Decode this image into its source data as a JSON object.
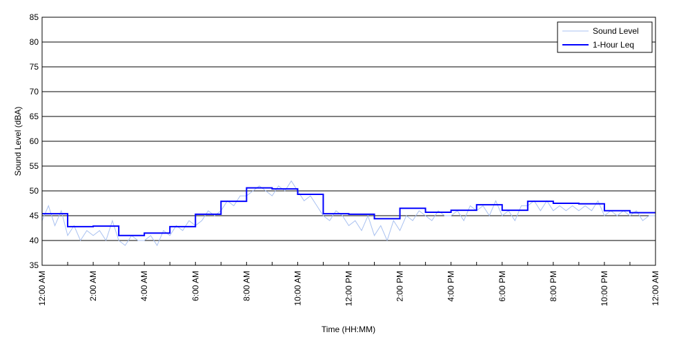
{
  "chart_data": {
    "type": "line",
    "title": "",
    "xlabel": "Time (HH:MM)",
    "ylabel": "Sound Level (dBA)",
    "ylim": [
      35,
      85
    ],
    "yticks": [
      35,
      40,
      45,
      50,
      55,
      60,
      65,
      70,
      75,
      80,
      85
    ],
    "xlim_hours": [
      0,
      24
    ],
    "xtick_hours": [
      0,
      2,
      4,
      6,
      8,
      10,
      12,
      14,
      16,
      18,
      20,
      22,
      24
    ],
    "xtick_labels": [
      "12:00 AM",
      "2:00 AM",
      "4:00 AM",
      "6:00 AM",
      "8:00 AM",
      "10:00 AM",
      "12:00 PM",
      "2:00 PM",
      "4:00 PM",
      "6:00 PM",
      "8:00 PM",
      "10:00 PM",
      "12:00 AM"
    ],
    "grid": "horizontal",
    "legend_position": "top-right",
    "series": [
      {
        "name": "Sound Level",
        "color": "#a8c0f0",
        "interval_hours": 0.25,
        "values": [
          44,
          47,
          43,
          46,
          41,
          43,
          40,
          42,
          41,
          42,
          40,
          44,
          40,
          39,
          41,
          40,
          40,
          41,
          39,
          42,
          41,
          43,
          42,
          44,
          43,
          44,
          46,
          45,
          46,
          48,
          47,
          49,
          49,
          50,
          51,
          50,
          49,
          51,
          50,
          52,
          50,
          48,
          49,
          47,
          45,
          44,
          46,
          45,
          43,
          44,
          42,
          45,
          41,
          43,
          40,
          44,
          42,
          45,
          44,
          46,
          45,
          44,
          46,
          45,
          45,
          46,
          44,
          47,
          46,
          47,
          45,
          48,
          45,
          46,
          44,
          47,
          47,
          48,
          46,
          48,
          46,
          47,
          46,
          47,
          46,
          47,
          46,
          48,
          45,
          46,
          45,
          46,
          45,
          46,
          44,
          45,
          45
        ]
      },
      {
        "name": "1-Hour Leq",
        "color": "#0000ff",
        "interval_hours": 1,
        "values": [
          45.4,
          42.8,
          42.9,
          41.0,
          41.5,
          42.8,
          45.3,
          47.9,
          50.6,
          50.4,
          49.3,
          45.4,
          45.3,
          44.4,
          46.5,
          45.7,
          46.1,
          47.2,
          46.1,
          47.9,
          47.5,
          47.4,
          46.0,
          45.6
        ]
      }
    ]
  }
}
